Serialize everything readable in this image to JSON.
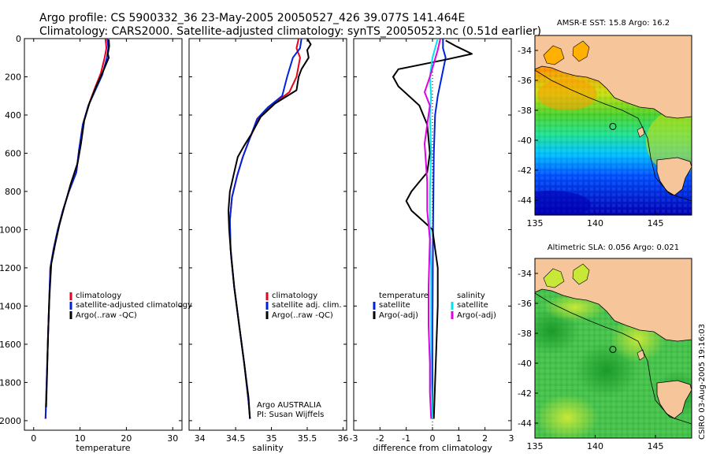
{
  "header": {
    "line1": "Argo profile: CS 5900332_36 23-May-2005 20050527_426 39.077S 141.464E",
    "line2": "Climatology: CARS2000. Satellite-adjusted climatology: synTS_20050523.nc (0.51d earlier)"
  },
  "colors": {
    "red": "#e8001c",
    "blue": "#0022dd",
    "black": "#000000",
    "cyan": "#00e5f0",
    "magenta": "#e000e0",
    "land": "#f7c59a"
  },
  "annotations": {
    "institution": "Argo AUSTRALIA",
    "pi": "PI: Susan Wijffels",
    "timestamp": "CSIRO 03-Aug-2005 19:16:03"
  },
  "maps": [
    {
      "title": "AMSR-E SST: 15.8 Argo: 16.2",
      "x_ticks": [
        "135",
        "140",
        "145"
      ],
      "y_ticks": [
        "-34",
        "-36",
        "-38",
        "-40",
        "-42",
        "-44"
      ],
      "xlim": [
        135,
        148
      ],
      "ylim": [
        -45,
        -33
      ],
      "float_position": {
        "lon": 141.464,
        "lat": -39.077
      },
      "field": "SST",
      "colorscale": [
        "#0000b4",
        "#0050ff",
        "#00c0ff",
        "#20e090",
        "#4cd12c",
        "#c8e010",
        "#ffb000",
        "#ff6000"
      ]
    },
    {
      "title": "Altimetric SLA: 0.056 Argo: 0.021",
      "x_ticks": [
        "135",
        "140",
        "145"
      ],
      "y_ticks": [
        "-34",
        "-36",
        "-38",
        "-40",
        "-42",
        "-44"
      ],
      "xlim": [
        135,
        148
      ],
      "ylim": [
        -45,
        -33
      ],
      "float_position": {
        "lon": 141.464,
        "lat": -39.077
      },
      "field": "SLA",
      "colorscale": [
        "#1a9a2a",
        "#2fb23a",
        "#44c24a",
        "#60d050",
        "#7ed848",
        "#a6e040",
        "#d0e838"
      ]
    }
  ],
  "chart_data": [
    {
      "type": "line",
      "xlabel": "temperature",
      "ylabel": "",
      "xlim": [
        -2,
        32
      ],
      "ylim": [
        2050,
        0
      ],
      "x_ticks": [
        "0",
        "10",
        "20",
        "30"
      ],
      "y_ticks": [
        "0",
        "200",
        "400",
        "600",
        "800",
        "1000",
        "1200",
        "1400",
        "1600",
        "1800",
        "2000"
      ],
      "legend_position": "center-right",
      "legend": [
        "climatology",
        "satellite-adjusted climatology",
        "Argo(..raw -QC)"
      ],
      "series": [
        {
          "name": "climatology",
          "color": "#e8001c",
          "points": [
            [
              15.5,
              0
            ],
            [
              15.7,
              50
            ],
            [
              15.3,
              100
            ],
            [
              14.5,
              180
            ],
            [
              13.2,
              260
            ],
            [
              11.8,
              350
            ],
            [
              10.6,
              450
            ],
            [
              9.8,
              580
            ],
            [
              9.2,
              700
            ],
            [
              7.6,
              800
            ],
            [
              6.3,
              900
            ],
            [
              5.2,
              1000
            ],
            [
              4.3,
              1100
            ],
            [
              3.6,
              1200
            ],
            [
              3.3,
              1400
            ],
            [
              3.05,
              1600
            ],
            [
              2.8,
              1800
            ],
            [
              2.55,
              1990
            ]
          ]
        },
        {
          "name": "satellite-adjusted climatology",
          "color": "#0022dd",
          "points": [
            [
              15.9,
              0
            ],
            [
              16.1,
              50
            ],
            [
              15.8,
              100
            ],
            [
              14.8,
              190
            ],
            [
              13.3,
              270
            ],
            [
              11.8,
              350
            ],
            [
              10.6,
              450
            ],
            [
              9.8,
              580
            ],
            [
              9.2,
              700
            ],
            [
              7.6,
              800
            ],
            [
              6.3,
              900
            ],
            [
              5.2,
              1000
            ],
            [
              4.3,
              1100
            ],
            [
              3.6,
              1200
            ],
            [
              3.3,
              1400
            ],
            [
              3.05,
              1600
            ],
            [
              2.8,
              1800
            ],
            [
              2.55,
              1990
            ]
          ]
        },
        {
          "name": "Argo(..raw -QC)",
          "color": "#000000",
          "points": [
            [
              16.2,
              5
            ],
            [
              16.3,
              40
            ],
            [
              16.0,
              80
            ],
            [
              16.2,
              100
            ],
            [
              15.0,
              170
            ],
            [
              13.5,
              250
            ],
            [
              12.0,
              340
            ],
            [
              10.9,
              430
            ],
            [
              10.2,
              550
            ],
            [
              9.5,
              650
            ],
            [
              8.0,
              760
            ],
            [
              6.6,
              880
            ],
            [
              5.5,
              980
            ],
            [
              4.6,
              1080
            ],
            [
              3.8,
              1180
            ],
            [
              3.4,
              1350
            ],
            [
              3.1,
              1550
            ],
            [
              2.9,
              1750
            ],
            [
              2.7,
              1930
            ]
          ]
        }
      ]
    },
    {
      "type": "line",
      "xlabel": "salinity",
      "xlim": [
        33.85,
        36.05
      ],
      "ylim": [
        2050,
        0
      ],
      "x_ticks": [
        "34",
        "34.5",
        "35",
        "35.5",
        "36"
      ],
      "legend_position": "center-right",
      "legend": [
        "climatology",
        "satellite adj. clim.",
        "Argo(..raw -QC)"
      ],
      "series": [
        {
          "name": "climatology",
          "color": "#e8001c",
          "points": [
            [
              35.38,
              0
            ],
            [
              35.35,
              50
            ],
            [
              35.4,
              100
            ],
            [
              35.35,
              200
            ],
            [
              35.25,
              280
            ],
            [
              35.0,
              350
            ],
            [
              34.82,
              420
            ],
            [
              34.7,
              520
            ],
            [
              34.6,
              620
            ],
            [
              34.52,
              720
            ],
            [
              34.45,
              830
            ],
            [
              34.42,
              950
            ],
            [
              34.43,
              1100
            ],
            [
              34.48,
              1300
            ],
            [
              34.55,
              1500
            ],
            [
              34.62,
              1700
            ],
            [
              34.68,
              1900
            ],
            [
              34.7,
              1990
            ]
          ]
        },
        {
          "name": "satellite adj. clim.",
          "color": "#0022dd",
          "points": [
            [
              35.42,
              0
            ],
            [
              35.4,
              50
            ],
            [
              35.3,
              100
            ],
            [
              35.22,
              200
            ],
            [
              35.15,
              300
            ],
            [
              34.95,
              360
            ],
            [
              34.8,
              420
            ],
            [
              34.7,
              520
            ],
            [
              34.6,
              620
            ],
            [
              34.52,
              720
            ],
            [
              34.45,
              830
            ],
            [
              34.42,
              950
            ],
            [
              34.43,
              1100
            ],
            [
              34.48,
              1300
            ],
            [
              34.55,
              1500
            ],
            [
              34.62,
              1700
            ],
            [
              34.68,
              1900
            ],
            [
              34.7,
              1990
            ]
          ]
        },
        {
          "name": "Argo(..raw -QC)",
          "color": "#000000",
          "points": [
            [
              35.5,
              0
            ],
            [
              35.55,
              30
            ],
            [
              35.5,
              60
            ],
            [
              35.52,
              100
            ],
            [
              35.42,
              160
            ],
            [
              35.38,
              200
            ],
            [
              35.35,
              270
            ],
            [
              35.05,
              340
            ],
            [
              34.85,
              410
            ],
            [
              34.72,
              500
            ],
            [
              34.62,
              560
            ],
            [
              34.53,
              620
            ],
            [
              34.48,
              700
            ],
            [
              34.42,
              800
            ],
            [
              34.4,
              900
            ],
            [
              34.41,
              1000
            ],
            [
              34.44,
              1150
            ],
            [
              34.48,
              1300
            ],
            [
              34.55,
              1500
            ],
            [
              34.62,
              1700
            ],
            [
              34.68,
              1880
            ],
            [
              34.7,
              1990
            ]
          ]
        }
      ]
    },
    {
      "type": "line",
      "xlabel": "difference from climatology",
      "xlim": [
        -3,
        3
      ],
      "ylim": [
        2050,
        0
      ],
      "x_ticks": [
        "-3",
        "-2",
        "-1",
        "0",
        "1",
        "2",
        "3"
      ],
      "legend_position": "center",
      "legend": [
        "temperature",
        "satellite",
        "Argo(-adj)",
        "salinity",
        "satellite",
        "Argo(-adj)"
      ],
      "series": [
        {
          "name": "temperature satellite",
          "color": "#0022dd",
          "points": [
            [
              0.4,
              0
            ],
            [
              0.4,
              50
            ],
            [
              0.5,
              100
            ],
            [
              0.35,
              200
            ],
            [
              0.2,
              300
            ],
            [
              0.1,
              400
            ],
            [
              0.05,
              600
            ],
            [
              0.02,
              1000
            ],
            [
              0.0,
              1500
            ],
            [
              0.0,
              1990
            ]
          ]
        },
        {
          "name": "temperature Argo(-adj)",
          "color": "#000000",
          "points": [
            [
              0.5,
              10
            ],
            [
              0.9,
              40
            ],
            [
              1.5,
              80
            ],
            [
              0.5,
              110
            ],
            [
              -1.3,
              160
            ],
            [
              -1.5,
              200
            ],
            [
              -1.3,
              250
            ],
            [
              -0.9,
              300
            ],
            [
              -0.5,
              350
            ],
            [
              -0.2,
              450
            ],
            [
              -0.1,
              600
            ],
            [
              -0.2,
              700
            ],
            [
              -0.5,
              750
            ],
            [
              -0.8,
              800
            ],
            [
              -1.0,
              850
            ],
            [
              -0.8,
              900
            ],
            [
              -0.4,
              950
            ],
            [
              0.0,
              1000
            ],
            [
              0.1,
              1100
            ],
            [
              0.2,
              1200
            ],
            [
              0.2,
              1400
            ],
            [
              0.15,
              1600
            ],
            [
              0.1,
              1800
            ],
            [
              0.05,
              1990
            ]
          ]
        },
        {
          "name": "salinity satellite",
          "color": "#00e5f0",
          "points": [
            [
              0.2,
              0
            ],
            [
              0.1,
              50
            ],
            [
              0.0,
              100
            ],
            [
              -0.1,
              200
            ],
            [
              -0.05,
              300
            ],
            [
              -0.1,
              400
            ],
            [
              -0.05,
              600
            ],
            [
              -0.1,
              800
            ],
            [
              -0.1,
              1000
            ],
            [
              -0.05,
              1200
            ],
            [
              -0.05,
              1500
            ],
            [
              -0.05,
              1800
            ],
            [
              0.0,
              1990
            ]
          ]
        },
        {
          "name": "salinity Argo(-adj)",
          "color": "#e000e0",
          "points": [
            [
              0.3,
              0
            ],
            [
              0.2,
              60
            ],
            [
              -0.1,
              200
            ],
            [
              -0.3,
              280
            ],
            [
              -0.1,
              350
            ],
            [
              -0.2,
              450
            ],
            [
              -0.3,
              550
            ],
            [
              -0.25,
              650
            ],
            [
              -0.2,
              750
            ],
            [
              -0.2,
              900
            ],
            [
              -0.1,
              1050
            ],
            [
              -0.15,
              1300
            ],
            [
              -0.15,
              1500
            ],
            [
              -0.1,
              1700
            ],
            [
              -0.1,
              1850
            ],
            [
              -0.05,
              1990
            ]
          ]
        }
      ]
    }
  ]
}
